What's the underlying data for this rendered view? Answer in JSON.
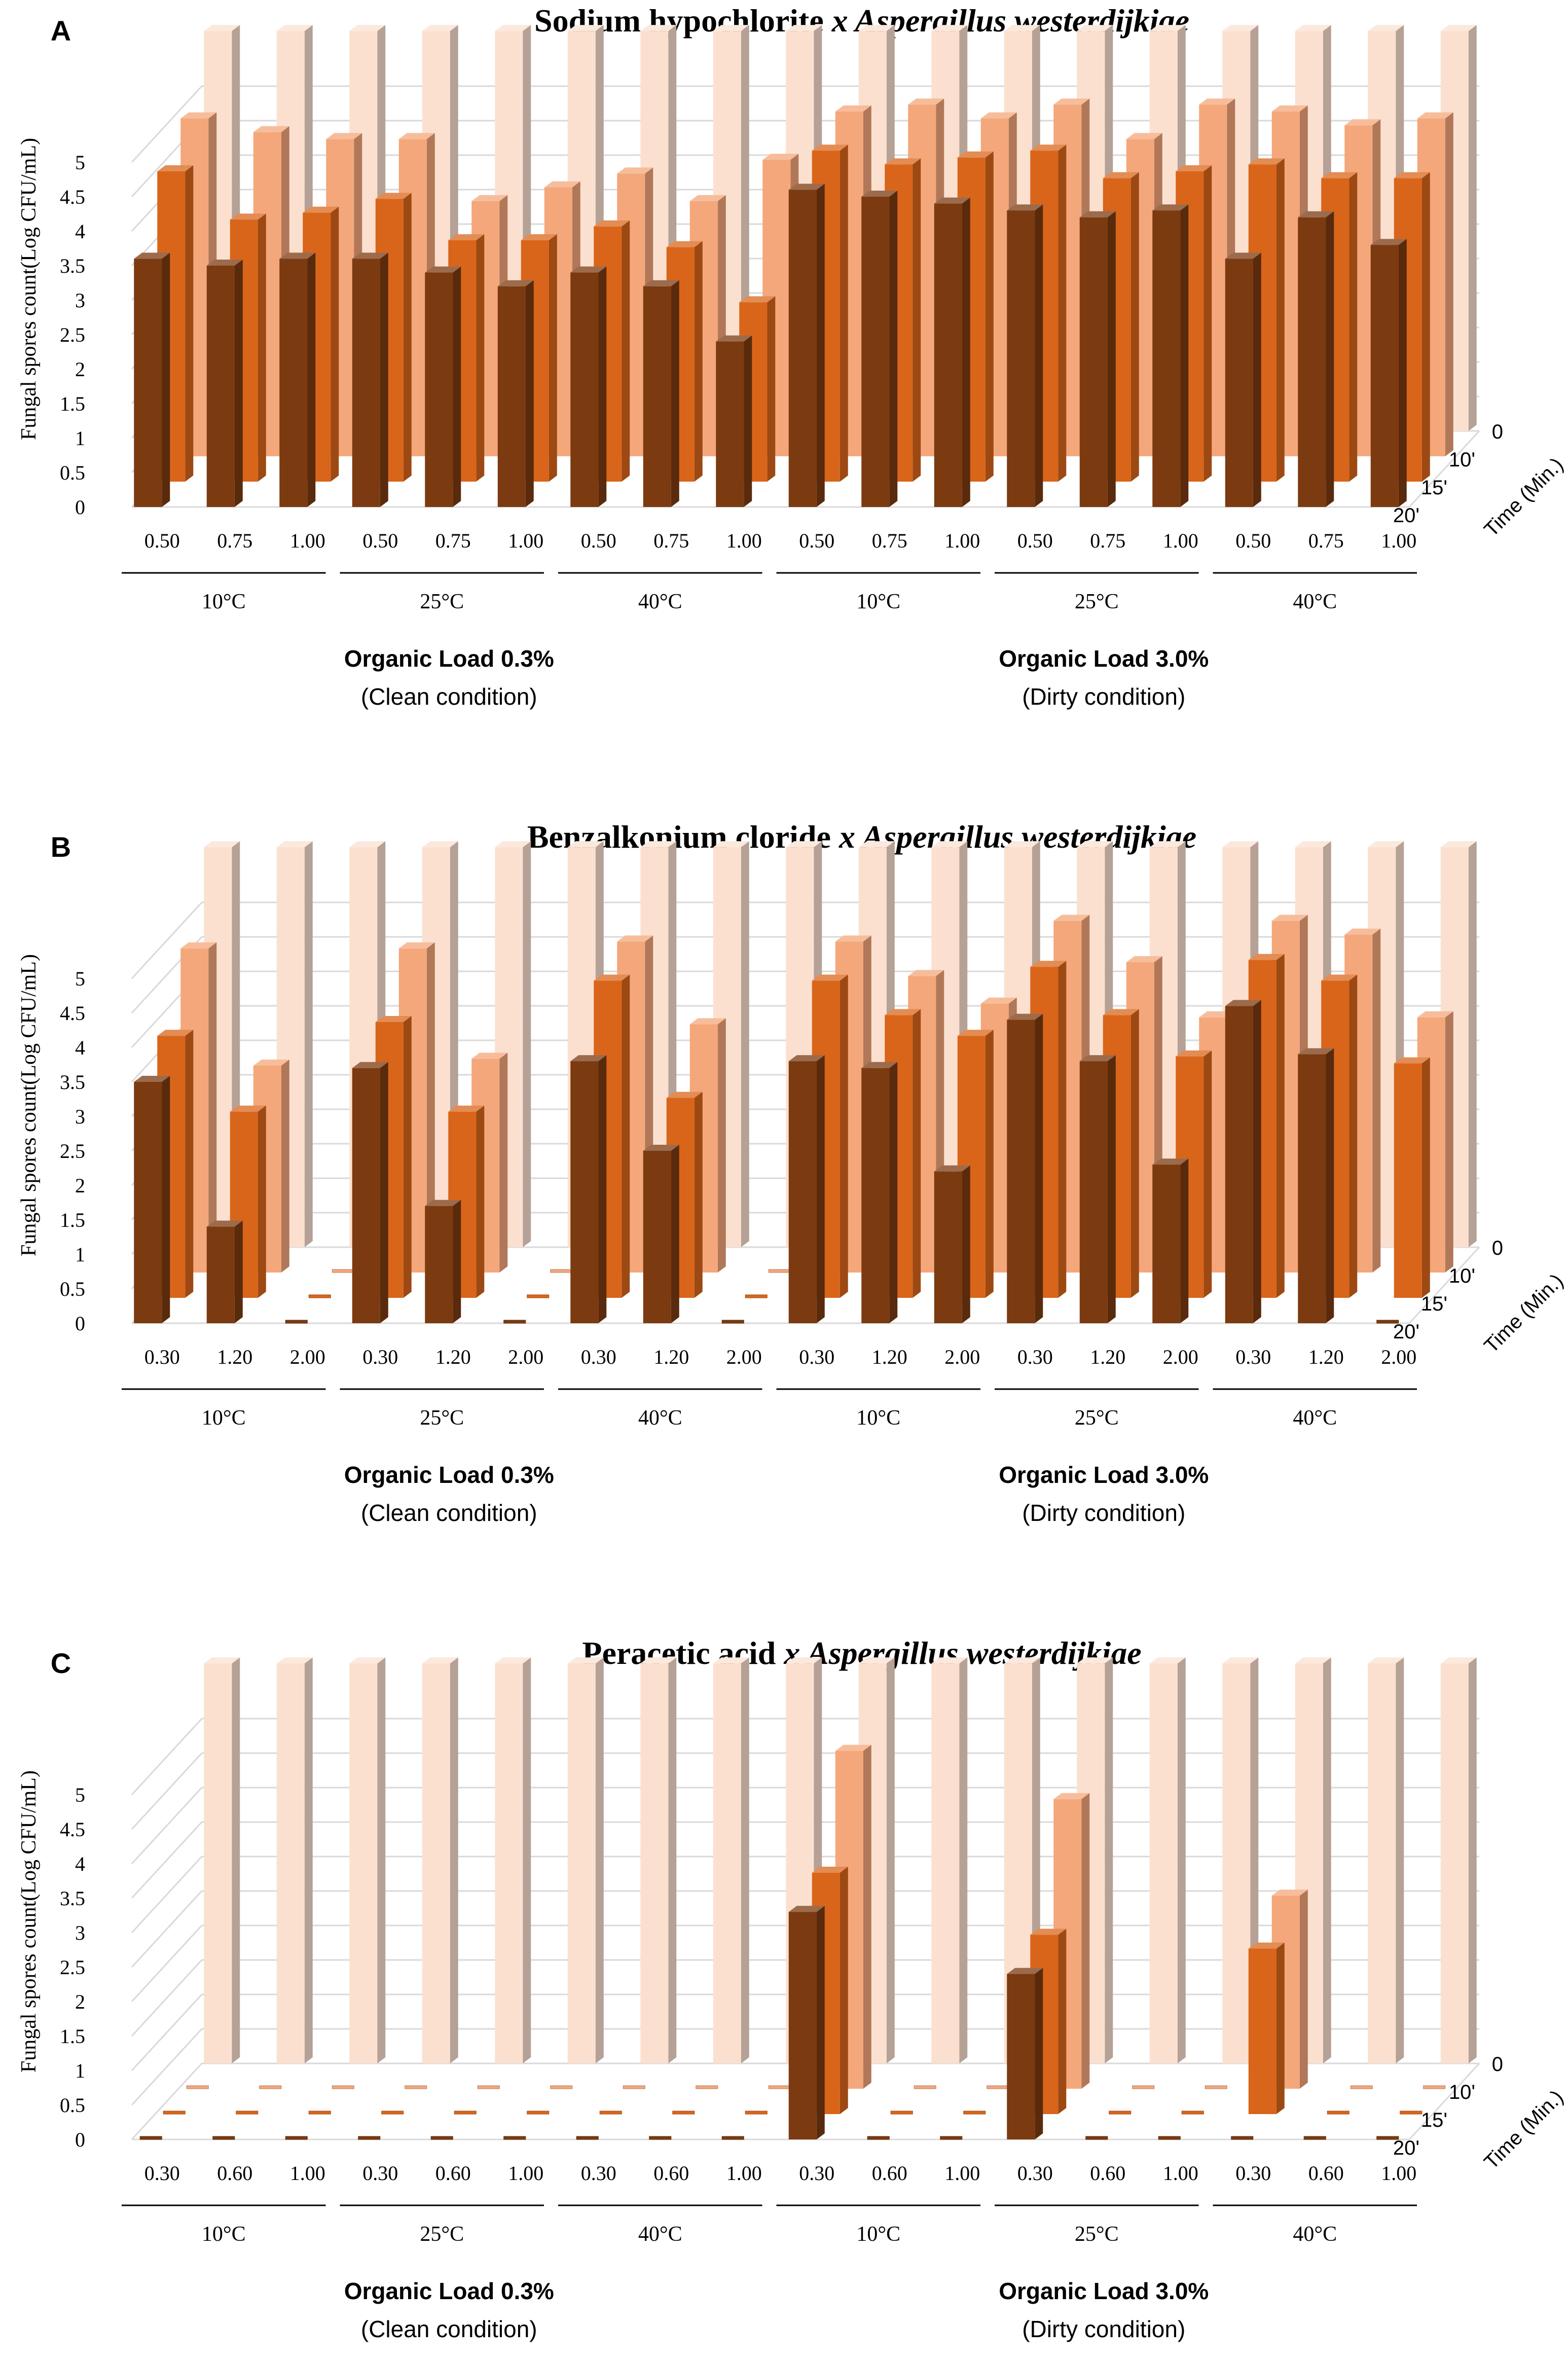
{
  "chart_data": [
    {
      "type": "bar",
      "panel_label": "A",
      "title_plain": "Sodium hypochlorite",
      "title_italic": "x Aspergillus westerdijkiae",
      "ylabel": "Fungal spores count(Log CFU/mL)",
      "ylim": [
        0,
        5
      ],
      "yticks": [
        "0",
        "0.5",
        "1",
        "1.5",
        "2",
        "2.5",
        "3",
        "3.5",
        "4",
        "4.5",
        "5"
      ],
      "categories": [
        "0.50",
        "0.75",
        "1.00",
        "0.50",
        "0.75",
        "1.00",
        "0.50",
        "0.75",
        "1.00",
        "0.50",
        "0.75",
        "1.00",
        "0.50",
        "0.75",
        "1.00",
        "0.50",
        "0.75",
        "1.00"
      ],
      "temperature_groups": [
        "10°C",
        "25°C",
        "40°C",
        "10°C",
        "25°C",
        "40°C"
      ],
      "organic_loads": [
        {
          "title": "Organic Load 0.3%",
          "subtitle": "(Clean condition)"
        },
        {
          "title": "Organic Load 3.0%",
          "subtitle": "(Dirty condition)"
        }
      ],
      "depth_axis_title": "Time (Min.)",
      "series": [
        {
          "name": "0",
          "color": "#FBE0D0",
          "values": [
            5.8,
            5.8,
            5.8,
            5.8,
            5.8,
            5.8,
            5.8,
            5.8,
            5.8,
            5.8,
            5.8,
            5.8,
            5.8,
            5.8,
            5.8,
            5.8,
            5.8,
            5.8
          ]
        },
        {
          "name": "10'",
          "color": "#F4A77A",
          "values": [
            4.9,
            4.7,
            4.6,
            4.6,
            3.7,
            3.9,
            4.1,
            3.7,
            4.3,
            5.0,
            5.1,
            4.9,
            5.1,
            4.6,
            5.1,
            5.0,
            4.8,
            4.9
          ]
        },
        {
          "name": "15'",
          "color": "#D9651A",
          "values": [
            4.5,
            3.8,
            3.9,
            4.1,
            3.5,
            3.5,
            3.7,
            3.4,
            2.6,
            4.8,
            4.6,
            4.7,
            4.8,
            4.4,
            4.5,
            4.6,
            4.4,
            4.4
          ]
        },
        {
          "name": "20'",
          "color": "#7B3A10",
          "values": [
            3.6,
            3.5,
            3.6,
            3.6,
            3.4,
            3.2,
            3.4,
            3.2,
            2.4,
            4.6,
            4.5,
            4.4,
            4.3,
            4.2,
            4.3,
            3.6,
            4.2,
            3.8
          ]
        }
      ]
    },
    {
      "type": "bar",
      "panel_label": "B",
      "title_plain": "Benzalkonium cloride",
      "title_italic": "x Aspergillus westerdijkiae",
      "ylabel": "Fungal spores count(Log CFU/mL)",
      "ylim": [
        0,
        5
      ],
      "yticks": [
        "0",
        "0.5",
        "1",
        "1.5",
        "2",
        "2.5",
        "3",
        "3.5",
        "4",
        "4.5",
        "5"
      ],
      "categories": [
        "0.30",
        "1.20",
        "2.00",
        "0.30",
        "1.20",
        "2.00",
        "0.30",
        "1.20",
        "2.00",
        "0.30",
        "1.20",
        "2.00",
        "0.30",
        "1.20",
        "2.00",
        "0.30",
        "1.20",
        "2.00"
      ],
      "temperature_groups": [
        "10°C",
        "25°C",
        "40°C",
        "10°C",
        "25°C",
        "40°C"
      ],
      "organic_loads": [
        {
          "title": "Organic Load 0.3%",
          "subtitle": "(Clean condition)"
        },
        {
          "title": "Organic Load 3.0%",
          "subtitle": "(Dirty condition)"
        }
      ],
      "depth_axis_title": "Time (Min.)",
      "series": [
        {
          "name": "0",
          "color": "#FBE0D0",
          "values": [
            5.8,
            5.8,
            5.8,
            5.8,
            5.8,
            5.8,
            5.8,
            5.8,
            5.8,
            5.8,
            5.8,
            5.8,
            5.8,
            5.8,
            5.8,
            5.8,
            5.8,
            5.8
          ]
        },
        {
          "name": "10'",
          "color": "#F4A77A",
          "values": [
            4.7,
            3.0,
            0.0,
            4.7,
            3.1,
            0.0,
            4.8,
            3.6,
            0.0,
            4.8,
            4.3,
            3.9,
            5.1,
            4.5,
            3.7,
            5.1,
            4.9,
            3.7
          ]
        },
        {
          "name": "15'",
          "color": "#D9651A",
          "values": [
            3.8,
            2.7,
            0.0,
            4.0,
            2.7,
            0.0,
            4.6,
            2.9,
            0.0,
            4.6,
            4.1,
            3.8,
            4.8,
            4.1,
            3.5,
            4.9,
            4.6,
            3.4
          ]
        },
        {
          "name": "20'",
          "color": "#7B3A10",
          "values": [
            3.5,
            1.4,
            0.0,
            3.7,
            1.7,
            0.0,
            3.8,
            2.5,
            0.0,
            3.8,
            3.7,
            2.2,
            4.4,
            3.8,
            2.3,
            4.6,
            3.9,
            0.0
          ]
        }
      ]
    },
    {
      "type": "bar",
      "panel_label": "C",
      "title_plain": "Peracetic acid",
      "title_italic": "x Aspergillus westerdijkiae",
      "ylabel": "Fungal spores count(Log CFU/mL)",
      "ylim": [
        0,
        5
      ],
      "yticks": [
        "0",
        "0.5",
        "1",
        "1.5",
        "2",
        "2.5",
        "3",
        "3.5",
        "4",
        "4.5",
        "5"
      ],
      "categories": [
        "0.30",
        "0.60",
        "1.00",
        "0.30",
        "0.60",
        "1.00",
        "0.30",
        "0.60",
        "1.00",
        "0.30",
        "0.60",
        "1.00",
        "0.30",
        "0.60",
        "1.00",
        "0.30",
        "0.60",
        "1.00"
      ],
      "temperature_groups": [
        "10°C",
        "25°C",
        "40°C",
        "10°C",
        "25°C",
        "40°C"
      ],
      "organic_loads": [
        {
          "title": "Organic Load 0.3%",
          "subtitle": "(Clean condition)"
        },
        {
          "title": "Organic Load 3.0%",
          "subtitle": "(Dirty condition)"
        }
      ],
      "depth_axis_title": "Time (Min.)",
      "series": [
        {
          "name": "0",
          "color": "#FBE0D0",
          "values": [
            5.8,
            5.8,
            5.8,
            5.8,
            5.8,
            5.8,
            5.8,
            5.8,
            5.8,
            5.8,
            5.8,
            5.8,
            5.8,
            5.8,
            5.8,
            5.8,
            5.8,
            5.8
          ]
        },
        {
          "name": "10'",
          "color": "#F4A77A",
          "values": [
            0.0,
            0.0,
            0.0,
            0.0,
            0.0,
            0.0,
            0.0,
            0.0,
            0.0,
            4.9,
            0.0,
            0.0,
            4.2,
            0.0,
            0.0,
            2.8,
            0.0,
            0.0
          ]
        },
        {
          "name": "15'",
          "color": "#D9651A",
          "values": [
            0.0,
            0.0,
            0.0,
            0.0,
            0.0,
            0.0,
            0.0,
            0.0,
            0.0,
            3.5,
            0.0,
            0.0,
            2.6,
            0.0,
            0.0,
            2.4,
            0.0,
            0.0
          ]
        },
        {
          "name": "20'",
          "color": "#7B3A10",
          "values": [
            0.0,
            0.0,
            0.0,
            0.0,
            0.0,
            0.0,
            0.0,
            0.0,
            0.0,
            3.3,
            0.0,
            0.0,
            2.4,
            0.0,
            0.0,
            0.0,
            0.0,
            0.0
          ]
        }
      ]
    }
  ]
}
